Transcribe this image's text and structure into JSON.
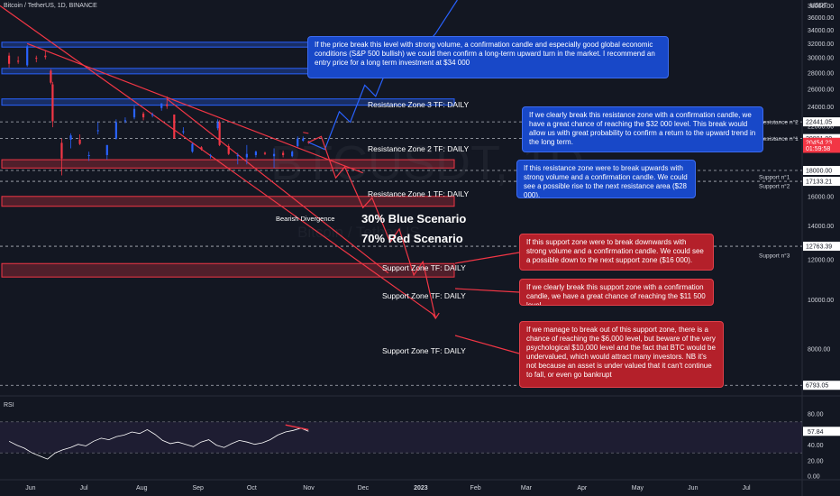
{
  "header": {
    "symbol": "Bitcoin / TetherUS, 1D, BINANCE",
    "currency": "USDT"
  },
  "watermark": {
    "ticker": "BTCUSDT, 1D",
    "name": "Bitcoin / TetherUS"
  },
  "colors": {
    "background": "#131722",
    "blue": "#2962ff",
    "red": "#f23645",
    "up": "#2962ff",
    "down": "#f23645"
  },
  "price_scale_ticks": [
    "38000.00",
    "36000.00",
    "34000.00",
    "32000.00",
    "30000.00",
    "28000.00",
    "26000.00",
    "24000.00",
    "22000.00",
    "20000.00",
    "18000.00",
    "16000.00",
    "14000.00",
    "12000.00",
    "10000.00",
    "8000.00"
  ],
  "price_tags": [
    {
      "label": "22441.05",
      "value": 22441.05,
      "style": "neutral"
    },
    {
      "label": "20801.00",
      "value": 20801.0,
      "style": "neutral"
    },
    {
      "label": "20454.23",
      "value": 20454.23,
      "style": "red"
    },
    {
      "label": "01:59:58",
      "value": 19900,
      "style": "red"
    },
    {
      "label": "18000.00",
      "value": 18000.0,
      "style": "neutral"
    },
    {
      "label": "17133.21",
      "value": 17133.21,
      "style": "neutral"
    },
    {
      "label": "12763.39",
      "value": 12763.39,
      "style": "neutral"
    },
    {
      "label": "6793.05",
      "value": 6793.05,
      "style": "neutral"
    }
  ],
  "level_labels": [
    {
      "text": "Resistance n°2",
      "value": 22441.05
    },
    {
      "text": "Resistance n°1",
      "value": 20801.0
    },
    {
      "text": "Support n°1",
      "value": 17500
    },
    {
      "text": "Support n°2",
      "value": 16800
    },
    {
      "text": "Support n°3",
      "value": 12250
    }
  ],
  "zones": [
    {
      "label": "Resistance Zone 3 TF: DAILY",
      "top": 32200,
      "bottom": 31500,
      "type": "resistance"
    },
    {
      "label": "Resistance Zone 2 TF: DAILY",
      "top": 28600,
      "bottom": 27900,
      "type": "resistance"
    },
    {
      "label": "Resistance Zone 1 TF: DAILY",
      "top": 24900,
      "bottom": 24200,
      "type": "resistance"
    },
    {
      "label": "Support Zone TF: DAILY",
      "top": 18900,
      "bottom": 18200,
      "type": "support"
    },
    {
      "label": "Support Zone TF: DAILY",
      "top": 16000,
      "bottom": 15300,
      "type": "support"
    },
    {
      "label": "Support Zone TF: DAILY",
      "top": 11800,
      "bottom": 11100,
      "type": "support"
    }
  ],
  "scenarios": {
    "blue": "30% Blue Scenario",
    "red": "70% Red Scenario",
    "divergence": "Bearish Divergence"
  },
  "annotations": [
    {
      "color": "blue",
      "text": "If the price break this level with strong volume, a confirmation candle and especially good global economic conditions (S&P 500 bullish) we could then confirm a long-term upward turn in the market. I recommend an entry price for a long term investment at $34 000"
    },
    {
      "color": "blue",
      "text": "If we clearly break this resistance zone with a confirmation candle, we have a great chance of reaching the $32 000 level. This break would allow us with great probability to confirm a return to the upward trend in the long term."
    },
    {
      "color": "blue",
      "text": "If this resistance zone were to break upwards with strong volume and a confirmation candle. We could see a possible rise to the next resistance area ($28 000)."
    },
    {
      "color": "red",
      "text": "If this support zone were to break downwards with strong volume and a confirmation candle. We could see a possible down to the next support zone ($16 000)."
    },
    {
      "color": "red",
      "text": "If we clearly break this support zone with a confirmation candle, we have a great chance of reaching the $11 500 level."
    },
    {
      "color": "red",
      "text": "If we manage to break out of this support zone, there is a chance of reaching the $6,000 level, but beware of the very psychological $10,000 level and the fact that BTC would be undervalued, which would attract many investors. NB it's not because an asset is under valued that it can't continue to fall, or even go bankrupt"
    }
  ],
  "rsi": {
    "title": "RSI",
    "value_label": "57.84",
    "value": 57.84,
    "ticks": [
      "80.00",
      "60.00",
      "40.00",
      "20.00",
      "0.00"
    ]
  },
  "x_axis_labels": [
    "Jun",
    "Jul",
    "Aug",
    "Sep",
    "Oct",
    "Nov",
    "Dec",
    "2023",
    "Feb",
    "Mar",
    "Apr",
    "May",
    "Jun",
    "Jul"
  ],
  "chart_data": {
    "type": "candlestick",
    "title": "Bitcoin / TetherUS, 1D, BINANCE",
    "ylim": [
      6500,
      39000
    ],
    "y_scale": "log",
    "x_range": [
      "2022-05-15",
      "2023-07-31"
    ],
    "ohlc": [
      {
        "date": "2022-05-20",
        "open": 30300,
        "high": 30700,
        "low": 28700,
        "close": 29200
      },
      {
        "date": "2022-05-25",
        "open": 29600,
        "high": 30200,
        "low": 29200,
        "close": 29500
      },
      {
        "date": "2022-05-30",
        "open": 29000,
        "high": 31800,
        "low": 28800,
        "close": 31600
      },
      {
        "date": "2022-06-04",
        "open": 30000,
        "high": 30300,
        "low": 29400,
        "close": 29900
      },
      {
        "date": "2022-06-09",
        "open": 30300,
        "high": 31000,
        "low": 29800,
        "close": 30100
      },
      {
        "date": "2022-06-12",
        "open": 28300,
        "high": 28500,
        "low": 26600,
        "close": 26800
      },
      {
        "date": "2022-06-13",
        "open": 26600,
        "high": 26900,
        "low": 21900,
        "close": 22500
      },
      {
        "date": "2022-06-18",
        "open": 20400,
        "high": 20800,
        "low": 17600,
        "close": 19000
      },
      {
        "date": "2022-06-23",
        "open": 20700,
        "high": 21300,
        "low": 19900,
        "close": 21100
      },
      {
        "date": "2022-06-28",
        "open": 20700,
        "high": 21200,
        "low": 20200,
        "close": 20300
      },
      {
        "date": "2022-07-03",
        "open": 19300,
        "high": 19600,
        "low": 18800,
        "close": 19300
      },
      {
        "date": "2022-07-08",
        "open": 21600,
        "high": 22400,
        "low": 21200,
        "close": 21600
      },
      {
        "date": "2022-07-13",
        "open": 19300,
        "high": 20200,
        "low": 18900,
        "close": 20200
      },
      {
        "date": "2022-07-18",
        "open": 20800,
        "high": 22700,
        "low": 20700,
        "close": 22400
      },
      {
        "date": "2022-07-23",
        "open": 22600,
        "high": 22900,
        "low": 22300,
        "close": 22600
      },
      {
        "date": "2022-07-28",
        "open": 22900,
        "high": 24200,
        "low": 22700,
        "close": 23800
      },
      {
        "date": "2022-08-02",
        "open": 23300,
        "high": 23500,
        "low": 22600,
        "close": 22900
      },
      {
        "date": "2022-08-07",
        "open": 23100,
        "high": 23400,
        "low": 22900,
        "close": 23200
      },
      {
        "date": "2022-08-12",
        "open": 23900,
        "high": 24400,
        "low": 23600,
        "close": 24400
      },
      {
        "date": "2022-08-15",
        "open": 24300,
        "high": 25200,
        "low": 23800,
        "close": 24100
      },
      {
        "date": "2022-08-19",
        "open": 23200,
        "high": 23200,
        "low": 20800,
        "close": 20800
      },
      {
        "date": "2022-08-24",
        "open": 21400,
        "high": 21900,
        "low": 21200,
        "close": 21500
      },
      {
        "date": "2022-08-29",
        "open": 19600,
        "high": 20400,
        "low": 19500,
        "close": 20300
      },
      {
        "date": "2022-09-03",
        "open": 20000,
        "high": 20100,
        "low": 19700,
        "close": 19800
      },
      {
        "date": "2022-09-08",
        "open": 19300,
        "high": 19400,
        "low": 19000,
        "close": 19300
      },
      {
        "date": "2022-09-12",
        "open": 21800,
        "high": 22700,
        "low": 21600,
        "close": 22400
      },
      {
        "date": "2022-09-13",
        "open": 22400,
        "high": 22600,
        "low": 20100,
        "close": 20200
      },
      {
        "date": "2022-09-18",
        "open": 20100,
        "high": 20300,
        "low": 19300,
        "close": 19400
      },
      {
        "date": "2022-09-23",
        "open": 19200,
        "high": 19500,
        "low": 18500,
        "close": 19300
      },
      {
        "date": "2022-09-28",
        "open": 19100,
        "high": 20200,
        "low": 18500,
        "close": 19400
      },
      {
        "date": "2022-10-03",
        "open": 19300,
        "high": 19700,
        "low": 19100,
        "close": 19600
      },
      {
        "date": "2022-10-08",
        "open": 19500,
        "high": 19600,
        "low": 19300,
        "close": 19400
      },
      {
        "date": "2022-10-13",
        "open": 19200,
        "high": 19900,
        "low": 18200,
        "close": 19400
      },
      {
        "date": "2022-10-18",
        "open": 19500,
        "high": 19700,
        "low": 19100,
        "close": 19300
      },
      {
        "date": "2022-10-23",
        "open": 19200,
        "high": 19700,
        "low": 19100,
        "close": 19600
      },
      {
        "date": "2022-10-26",
        "open": 20100,
        "high": 21000,
        "low": 20000,
        "close": 20800
      },
      {
        "date": "2022-10-29",
        "open": 20600,
        "high": 21000,
        "low": 20500,
        "close": 20800
      },
      {
        "date": "2022-11-01",
        "open": 20500,
        "high": 20600,
        "low": 20300,
        "close": 20454.23
      }
    ],
    "blue_scenario_path": [
      {
        "date": "2022-11-01",
        "y": 20454
      },
      {
        "date": "2022-11-10",
        "y": 19800
      },
      {
        "date": "2022-11-18",
        "y": 23500
      },
      {
        "date": "2022-11-24",
        "y": 22400
      },
      {
        "date": "2022-12-02",
        "y": 26500
      },
      {
        "date": "2022-12-08",
        "y": 25200
      },
      {
        "date": "2022-12-15",
        "y": 29000
      },
      {
        "date": "2022-12-20",
        "y": 27600
      },
      {
        "date": "2022-12-27",
        "y": 31800
      },
      {
        "date": "2023-01-02",
        "y": 31000
      },
      {
        "date": "2023-01-10",
        "y": 33500
      },
      {
        "date": "2023-01-22",
        "y": 39000
      }
    ],
    "red_scenario_path": [
      {
        "date": "2022-11-01",
        "y": 20454
      },
      {
        "date": "2022-11-08",
        "y": 21000
      },
      {
        "date": "2022-11-16",
        "y": 17400
      },
      {
        "date": "2022-11-21",
        "y": 18300
      },
      {
        "date": "2022-12-01",
        "y": 15200
      },
      {
        "date": "2022-12-06",
        "y": 15900
      },
      {
        "date": "2022-12-16",
        "y": 13000
      },
      {
        "date": "2022-12-21",
        "y": 13800
      },
      {
        "date": "2022-12-29",
        "y": 11200
      },
      {
        "date": "2023-01-03",
        "y": 11900
      },
      {
        "date": "2023-01-10",
        "y": 9200
      }
    ],
    "trendlines": [
      {
        "from": {
          "date": "2022-05-15",
          "y": 38000
        },
        "to": {
          "date": "2023-01-10",
          "y": 9300
        },
        "color": "red"
      },
      {
        "from": {
          "date": "2022-05-30",
          "y": 32000
        },
        "to": {
          "date": "2022-12-01",
          "y": 17800
        },
        "color": "red"
      },
      {
        "from": {
          "date": "2022-08-15",
          "y": 24900
        },
        "to": {
          "date": "2022-12-15",
          "y": 11300
        },
        "color": "red"
      }
    ],
    "rsi_series": [
      45,
      40,
      36,
      30,
      26,
      22,
      30,
      34,
      37,
      41,
      39,
      45,
      49,
      47,
      51,
      53,
      57,
      55,
      60,
      54,
      46,
      42,
      44,
      41,
      38,
      44,
      47,
      40,
      37,
      42,
      46,
      44,
      41,
      43,
      47,
      53,
      57,
      59,
      62,
      57.84
    ],
    "rsi_ylim": [
      0,
      100
    ]
  }
}
